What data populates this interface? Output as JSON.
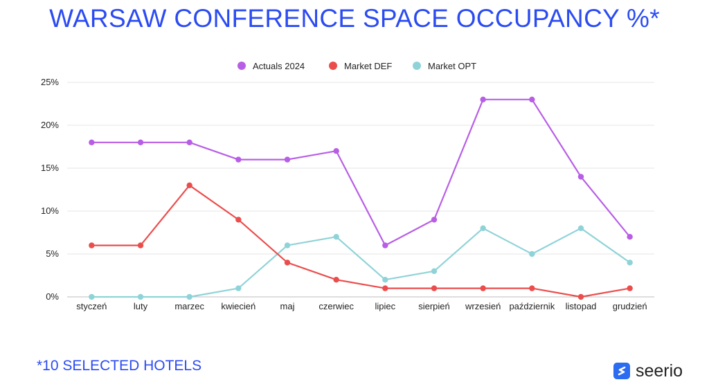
{
  "title": "WARSAW CONFERENCE SPACE OCCUPANCY %*",
  "footnote": "*10 SELECTED HOTELS",
  "brand": {
    "name": "seerio",
    "icon": "s-logo-icon",
    "color": "#2b6cf0"
  },
  "chart_data": {
    "type": "line",
    "categories": [
      "styczeń",
      "luty",
      "marzec",
      "kwiecień",
      "maj",
      "czerwiec",
      "lipiec",
      "sierpień",
      "wrzesień",
      "październik",
      "listopad",
      "grudzień"
    ],
    "series": [
      {
        "name": "Actuals 2024",
        "color": "#b85ee6",
        "values": [
          18,
          18,
          18,
          16,
          16,
          17,
          6,
          9,
          23,
          23,
          14,
          7
        ]
      },
      {
        "name": "Market DEF",
        "color": "#eb4d4d",
        "values": [
          6,
          6,
          13,
          9,
          4,
          2,
          1,
          1,
          1,
          1,
          0,
          1
        ]
      },
      {
        "name": "Market OPT",
        "color": "#8fd3d8",
        "values": [
          0,
          0,
          0,
          1,
          6,
          7,
          2,
          3,
          8,
          5,
          8,
          4
        ]
      }
    ],
    "ylim": [
      0,
      25
    ],
    "yticks": [
      "0%",
      "5%",
      "10%",
      "15%",
      "20%",
      "25%"
    ],
    "grid": true,
    "legend": "top-center"
  }
}
